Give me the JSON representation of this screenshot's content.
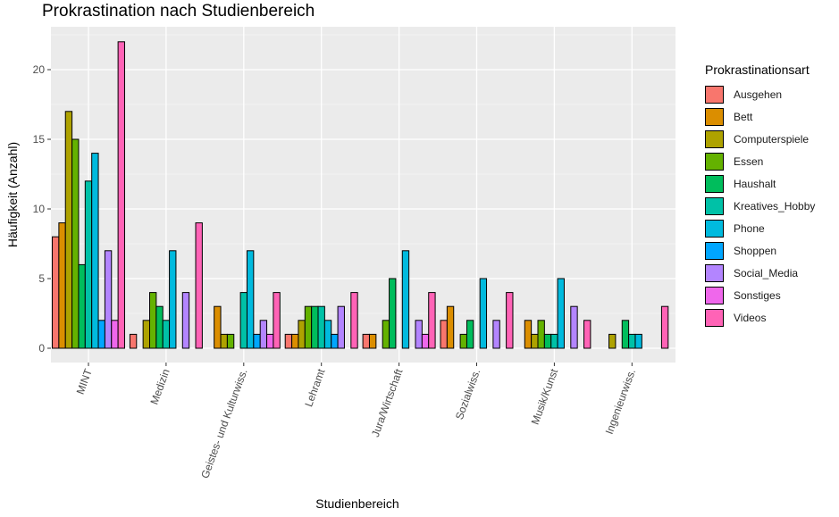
{
  "chart_data": {
    "type": "bar",
    "title": "Prokrastination nach Studienbereich",
    "xlabel": "Studienbereich",
    "ylabel": "Häufigkeit (Anzahl)",
    "ylim": [
      0,
      23
    ],
    "yticks": [
      0,
      5,
      10,
      15,
      20
    ],
    "grid": true,
    "legend_position": "right",
    "legend_title": "Prokrastinationsart",
    "categories": [
      "MINT",
      "Medizin",
      "Geistes- und Kulturwiss.",
      "Lehramt",
      "Jura/Wirtschaft",
      "Sozialwiss.",
      "Musik/Kunst",
      "Ingenieurwiss."
    ],
    "series": [
      {
        "name": "Ausgehen",
        "color": "#F8766D",
        "values": [
          8,
          1,
          0,
          1,
          1,
          2,
          0,
          0
        ]
      },
      {
        "name": "Bett",
        "color": "#DB8E00",
        "values": [
          9,
          0,
          3,
          1,
          1,
          3,
          2,
          0
        ]
      },
      {
        "name": "Computerspiele",
        "color": "#AEA200",
        "values": [
          17,
          2,
          1,
          2,
          0,
          0,
          1,
          1
        ]
      },
      {
        "name": "Essen",
        "color": "#64B200",
        "values": [
          15,
          4,
          1,
          3,
          2,
          1,
          2,
          0
        ]
      },
      {
        "name": "Haushalt",
        "color": "#00BD5C",
        "values": [
          6,
          3,
          0,
          3,
          5,
          2,
          1,
          2
        ]
      },
      {
        "name": "Kreatives_Hobby",
        "color": "#00C1A7",
        "values": [
          12,
          2,
          4,
          3,
          0,
          0,
          1,
          1
        ]
      },
      {
        "name": "Phone",
        "color": "#00BADE",
        "values": [
          14,
          7,
          7,
          2,
          7,
          5,
          5,
          1
        ]
      },
      {
        "name": "Shoppen",
        "color": "#00A6FF",
        "values": [
          2,
          0,
          1,
          1,
          0,
          0,
          0,
          0
        ]
      },
      {
        "name": "Social_Media",
        "color": "#B385FF",
        "values": [
          7,
          4,
          2,
          3,
          2,
          2,
          3,
          0
        ]
      },
      {
        "name": "Sonstiges",
        "color": "#EF67EB",
        "values": [
          2,
          0,
          1,
          0,
          1,
          0,
          0,
          0
        ]
      },
      {
        "name": "Videos",
        "color": "#FF63B6",
        "values": [
          22,
          9,
          4,
          4,
          4,
          4,
          2,
          3
        ]
      }
    ]
  }
}
